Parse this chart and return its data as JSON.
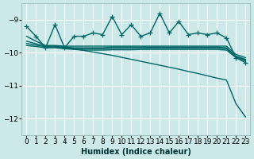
{
  "xlabel": "Humidex (Indice chaleur)",
  "bg_color": "#cce8e8",
  "grid_color": "#ffffff",
  "line_color": "#006666",
  "xlim": [
    -0.5,
    23.5
  ],
  "ylim": [
    -12.5,
    -8.5
  ],
  "yticks": [
    -12,
    -11,
    -10,
    -9
  ],
  "xticks": [
    0,
    1,
    2,
    3,
    4,
    5,
    6,
    7,
    8,
    9,
    10,
    11,
    12,
    13,
    14,
    15,
    16,
    17,
    18,
    19,
    20,
    21,
    22,
    23
  ],
  "series": [
    {
      "x": [
        0,
        1,
        2,
        3,
        4,
        5,
        6,
        7,
        8,
        9,
        10,
        11,
        12,
        13,
        14,
        15,
        16,
        17,
        18,
        19,
        20,
        21,
        22,
        23
      ],
      "y": [
        -9.2,
        -9.5,
        -9.85,
        -9.15,
        -9.85,
        -9.5,
        -9.5,
        -9.4,
        -9.45,
        -8.9,
        -9.45,
        -9.15,
        -9.5,
        -9.4,
        -8.8,
        -9.4,
        -9.05,
        -9.45,
        -9.4,
        -9.45,
        -9.4,
        -9.55,
        -10.15,
        -10.3
      ],
      "marker": "+",
      "linewidth": 1.0,
      "markersize": 4
    },
    {
      "x": [
        0,
        1,
        2,
        3,
        4,
        5,
        6,
        7,
        8,
        9,
        10,
        11,
        12,
        13,
        14,
        15,
        16,
        17,
        18,
        19,
        20,
        21,
        22,
        23
      ],
      "y": [
        -9.5,
        -9.65,
        -9.78,
        -9.78,
        -9.8,
        -9.8,
        -9.8,
        -9.8,
        -9.8,
        -9.8,
        -9.8,
        -9.8,
        -9.8,
        -9.8,
        -9.8,
        -9.8,
        -9.8,
        -9.8,
        -9.8,
        -9.8,
        -9.8,
        -9.8,
        -10.05,
        -10.15
      ],
      "marker": null,
      "linewidth": 1.0,
      "markersize": 0
    },
    {
      "x": [
        0,
        1,
        2,
        3,
        4,
        5,
        6,
        7,
        8,
        9,
        10,
        11,
        12,
        13,
        14,
        15,
        16,
        17,
        18,
        19,
        20,
        21,
        22,
        23
      ],
      "y": [
        -9.65,
        -9.73,
        -9.8,
        -9.8,
        -9.83,
        -9.85,
        -9.85,
        -9.85,
        -9.85,
        -9.83,
        -9.83,
        -9.83,
        -9.83,
        -9.83,
        -9.83,
        -9.83,
        -9.83,
        -9.83,
        -9.83,
        -9.83,
        -9.83,
        -9.85,
        -10.1,
        -10.2
      ],
      "marker": null,
      "linewidth": 1.0,
      "markersize": 0
    },
    {
      "x": [
        0,
        1,
        2,
        3,
        4,
        5,
        6,
        7,
        8,
        9,
        10,
        11,
        12,
        13,
        14,
        15,
        16,
        17,
        18,
        19,
        20,
        21,
        22,
        23
      ],
      "y": [
        -9.72,
        -9.77,
        -9.82,
        -9.82,
        -9.85,
        -9.87,
        -9.88,
        -9.88,
        -9.88,
        -9.87,
        -9.87,
        -9.87,
        -9.87,
        -9.86,
        -9.86,
        -9.86,
        -9.86,
        -9.86,
        -9.86,
        -9.86,
        -9.86,
        -9.88,
        -10.13,
        -10.22
      ],
      "marker": null,
      "linewidth": 1.0,
      "markersize": 0
    },
    {
      "x": [
        0,
        1,
        2,
        3,
        4,
        5,
        6,
        7,
        8,
        9,
        10,
        11,
        12,
        13,
        14,
        15,
        16,
        17,
        18,
        19,
        20,
        21,
        22,
        23
      ],
      "y": [
        -9.78,
        -9.81,
        -9.85,
        -9.85,
        -9.88,
        -9.9,
        -9.92,
        -9.92,
        -9.92,
        -9.91,
        -9.91,
        -9.91,
        -9.9,
        -9.9,
        -9.9,
        -9.9,
        -9.9,
        -9.9,
        -9.9,
        -9.9,
        -9.9,
        -9.92,
        -10.15,
        -10.25
      ],
      "marker": null,
      "linewidth": 1.0,
      "markersize": 0
    },
    {
      "x": [
        2,
        3,
        4,
        5,
        6,
        7,
        8,
        9,
        10,
        11,
        12,
        13,
        14,
        15,
        16,
        17,
        18,
        19,
        20,
        21,
        22,
        23
      ],
      "y": [
        -9.82,
        -9.82,
        -9.83,
        -9.88,
        -9.93,
        -9.98,
        -10.03,
        -10.08,
        -10.14,
        -10.2,
        -10.26,
        -10.32,
        -10.38,
        -10.44,
        -10.5,
        -10.57,
        -10.63,
        -10.7,
        -10.77,
        -10.83,
        -11.55,
        -11.95
      ],
      "marker": null,
      "linewidth": 1.0,
      "markersize": 0
    }
  ]
}
